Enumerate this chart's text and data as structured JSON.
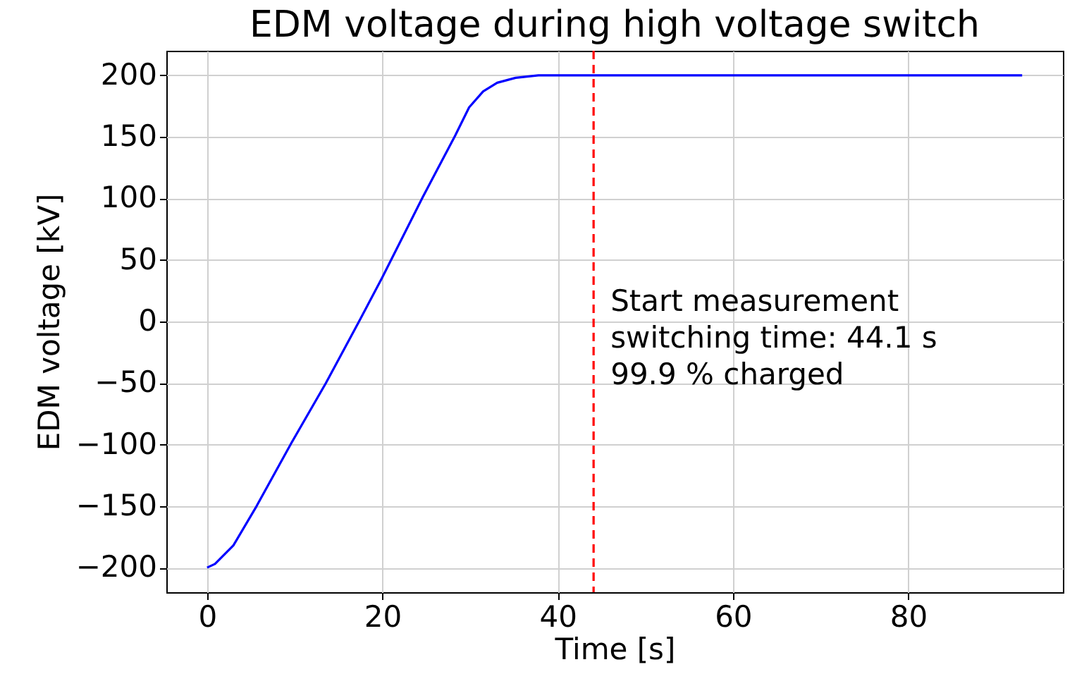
{
  "chart_data": {
    "type": "line",
    "title": "EDM voltage during high voltage switch",
    "xlabel": "Time [s]",
    "ylabel": "EDM voltage [kV]",
    "x": [
      0,
      0.9,
      3,
      5.65,
      9.6,
      13.56,
      17.26,
      20,
      24.6,
      28.3,
      29.9,
      31.5,
      33.1,
      35.2,
      37.8,
      40,
      50,
      60,
      70,
      80,
      93
    ],
    "series": [
      {
        "color": "#0000ff",
        "values": [
          -200,
          -197,
          -182,
          -150,
          -99,
          -50,
          -1,
          36,
          101,
          151,
          174,
          187,
          194,
          198,
          200,
          200,
          200,
          200,
          200,
          200,
          200
        ]
      }
    ],
    "xlim": [
      -4.65,
      97.65
    ],
    "xticks": [
      0,
      20,
      40,
      60,
      80
    ],
    "ylim": [
      -220,
      220
    ],
    "yticks": [
      -200,
      -150,
      -100,
      -50,
      0,
      50,
      100,
      150,
      200
    ],
    "grid": true,
    "marker": "none",
    "line_style": "solid",
    "ref_lines": [
      {
        "axis": "x",
        "value": 44.1,
        "color": "#ff0000",
        "line_style": "dashed"
      }
    ],
    "annotations": [
      {
        "text": "Start measurement\nswitching time: 44.1 s\n99.9 % charged",
        "x": 44.1,
        "y": 20
      }
    ]
  }
}
